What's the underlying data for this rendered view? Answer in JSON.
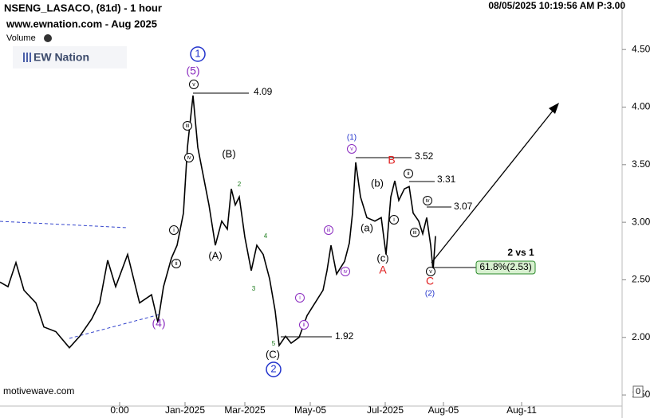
{
  "chart_data": {
    "type": "line",
    "title": "NSENG_LASACO, (81d) - 1 hour",
    "subtitle": "www.ewnation.com  - Aug 2025",
    "volume_label": "Volume",
    "logo_text": "EW Nation",
    "timestamp": "08/05/2025 10:19:56 AM  P:3.00",
    "watermark": "motivewave.com",
    "color": "#000000",
    "grid": false,
    "x": [
      0,
      10,
      20,
      30,
      45,
      55,
      70,
      87,
      100,
      115,
      125,
      135,
      145,
      160,
      175,
      190,
      198,
      205,
      215,
      222,
      230,
      235,
      242,
      248,
      255,
      262,
      270,
      278,
      285,
      290,
      295,
      300,
      307,
      315,
      322,
      330,
      338,
      345,
      350,
      358,
      365,
      375,
      385,
      395,
      405,
      410,
      415,
      422,
      432,
      438,
      442,
      446,
      452,
      460,
      470,
      478,
      484,
      490,
      495,
      500,
      507,
      513,
      518,
      525,
      530,
      535,
      540,
      543,
      546
    ],
    "values": [
      2.48,
      2.44,
      2.65,
      2.41,
      2.3,
      2.09,
      2.05,
      1.91,
      2.01,
      2.16,
      2.3,
      2.67,
      2.44,
      2.72,
      2.3,
      2.37,
      2.13,
      2.44,
      2.69,
      2.8,
      3.08,
      3.65,
      4.1,
      3.65,
      3.4,
      3.15,
      2.8,
      3.01,
      2.94,
      3.29,
      3.15,
      3.22,
      2.87,
      2.58,
      2.8,
      2.72,
      2.51,
      2.23,
      1.93,
      2.01,
      1.95,
      2.0,
      2.19,
      2.3,
      2.41,
      2.58,
      2.8,
      2.55,
      2.66,
      2.82,
      3.08,
      3.52,
      3.22,
      3.04,
      3.01,
      3.04,
      2.72,
      3.22,
      3.36,
      3.19,
      3.29,
      3.31,
      3.08,
      3.01,
      2.9,
      3.04,
      2.8,
      2.58,
      2.88
    ],
    "xlim": [
      0,
      780
    ],
    "xticks": [
      {
        "value": 150,
        "label": "0:00"
      },
      {
        "value": 232,
        "label": "Jan-2025"
      },
      {
        "value": 307,
        "label": "Mar-2025"
      },
      {
        "value": 389,
        "label": "May-05"
      },
      {
        "value": 483,
        "label": "Jul-2025"
      },
      {
        "value": 556,
        "label": "Aug-05"
      },
      {
        "value": 654,
        "label": "Aug-11"
      }
    ],
    "ylim": [
      1.3,
      4.93
    ],
    "yticks": [
      {
        "value": 1.5,
        "label": "1.50"
      },
      {
        "value": 2,
        "label": "2.00"
      },
      {
        "value": 2.5,
        "label": "2.50"
      },
      {
        "value": 3,
        "label": "3.00"
      },
      {
        "value": 3.5,
        "label": "3.50"
      },
      {
        "value": 4,
        "label": "4.00"
      },
      {
        "value": 4.5,
        "label": "4.50"
      }
    ],
    "annotations": [
      "1",
      "(5)",
      "v",
      "iii",
      "iv",
      "i",
      "ii",
      "(4)",
      "(B)",
      "(A)",
      "2",
      "4",
      "3",
      "5",
      "(C)",
      "2",
      "i",
      "ii",
      "iii",
      "iv",
      "(1)",
      "v",
      "(b)",
      "B",
      "i",
      "(a)",
      "(c)",
      "A",
      "ii",
      "iv",
      "iii",
      "v",
      "C",
      "(2)",
      "4.09",
      "3.52",
      "3.31",
      "3.07",
      "1.92",
      "2 vs 1",
      "61.8%(2.53)",
      "0"
    ]
  }
}
